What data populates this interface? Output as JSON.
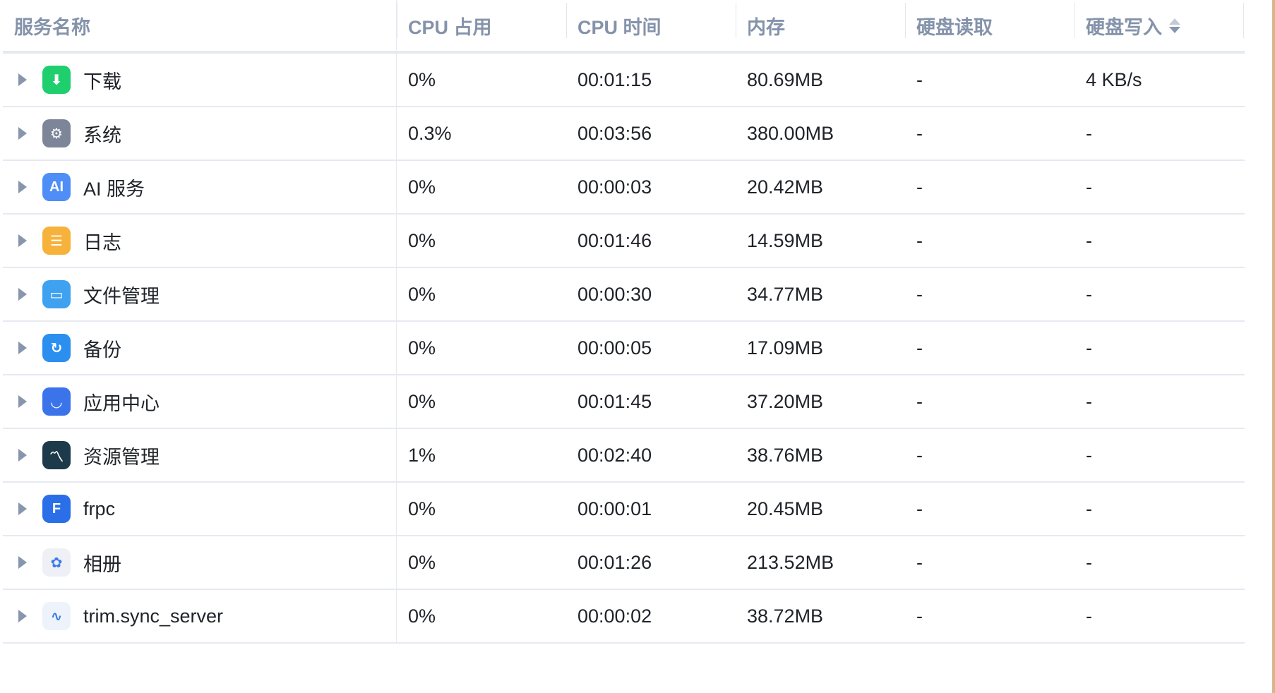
{
  "columns": [
    "服务名称",
    "CPU 占用",
    "CPU 时间",
    "内存",
    "硬盘读取",
    "硬盘写入"
  ],
  "sorted_column": "硬盘写入",
  "rows": [
    {
      "name": "下载",
      "icon": "download-icon",
      "color": "#1fcf6e",
      "glyph": "⬇",
      "cpu": "0%",
      "time": "00:01:15",
      "mem": "80.69MB",
      "read": "-",
      "write": "4 KB/s"
    },
    {
      "name": "系统",
      "icon": "gear-icon",
      "color": "#7d8698",
      "glyph": "⚙",
      "cpu": "0.3%",
      "time": "00:03:56",
      "mem": "380.00MB",
      "read": "-",
      "write": "-"
    },
    {
      "name": "AI 服务",
      "icon": "ai-icon",
      "color": "#4f8ef7",
      "glyph": "AI",
      "cpu": "0%",
      "time": "00:00:03",
      "mem": "20.42MB",
      "read": "-",
      "write": "-"
    },
    {
      "name": "日志",
      "icon": "log-icon",
      "color": "#f7b23b",
      "glyph": "☰",
      "cpu": "0%",
      "time": "00:01:46",
      "mem": "14.59MB",
      "read": "-",
      "write": "-"
    },
    {
      "name": "文件管理",
      "icon": "folder-icon",
      "color": "#3fa2f0",
      "glyph": "▭",
      "cpu": "0%",
      "time": "00:00:30",
      "mem": "34.77MB",
      "read": "-",
      "write": "-"
    },
    {
      "name": "备份",
      "icon": "backup-icon",
      "color": "#2b8ff0",
      "glyph": "↻",
      "cpu": "0%",
      "time": "00:00:05",
      "mem": "17.09MB",
      "read": "-",
      "write": "-"
    },
    {
      "name": "应用中心",
      "icon": "store-icon",
      "color": "#3b74ea",
      "glyph": "◡",
      "cpu": "0%",
      "time": "00:01:45",
      "mem": "37.20MB",
      "read": "-",
      "write": "-"
    },
    {
      "name": "资源管理",
      "icon": "resource-monitor-icon",
      "color": "#1d3a4a",
      "glyph": "〽",
      "cpu": "1%",
      "time": "00:02:40",
      "mem": "38.76MB",
      "read": "-",
      "write": "-"
    },
    {
      "name": "frpc",
      "icon": "frpc-icon",
      "color": "#2a6fe8",
      "glyph": "F",
      "cpu": "0%",
      "time": "00:00:01",
      "mem": "20.45MB",
      "read": "-",
      "write": "-"
    },
    {
      "name": "相册",
      "icon": "photos-icon",
      "color": "#eef0f5",
      "glyph": "✿",
      "cpu": "0%",
      "time": "00:01:26",
      "mem": "213.52MB",
      "read": "-",
      "write": "-"
    },
    {
      "name": "trim.sync_server",
      "icon": "sync-icon",
      "color": "#eef3fb",
      "glyph": "∿",
      "cpu": "0%",
      "time": "00:00:02",
      "mem": "38.72MB",
      "read": "-",
      "write": "-"
    }
  ]
}
